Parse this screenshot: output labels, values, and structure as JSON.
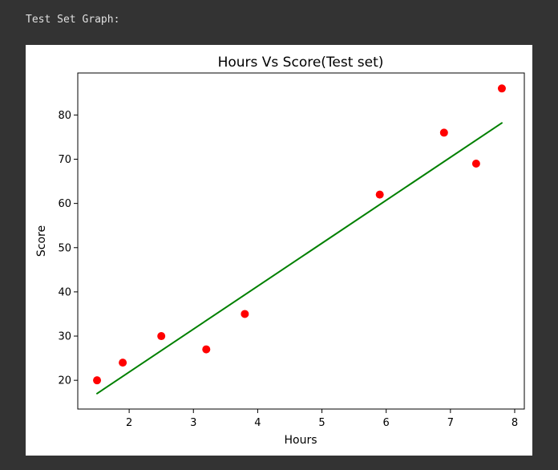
{
  "output": {
    "label": "Test Set Graph:"
  },
  "colors": {
    "background": "#333333",
    "figure": "#ffffff",
    "points": "#ff0000",
    "line": "#008000",
    "axis": "#000000"
  },
  "chart_data": {
    "type": "scatter",
    "title": "Hours Vs Score(Test set)",
    "xlabel": "Hours",
    "ylabel": "Score",
    "xlim": [
      1.2,
      8.15
    ],
    "ylim": [
      13.5,
      89.5
    ],
    "xticks": [
      2,
      3,
      4,
      5,
      6,
      7,
      8
    ],
    "yticks": [
      20,
      30,
      40,
      50,
      60,
      70,
      80
    ],
    "grid": false,
    "legend": "none",
    "series": [
      {
        "type": "scatter",
        "color": "#ff0000",
        "x": [
          1.5,
          1.9,
          2.5,
          3.2,
          3.8,
          5.9,
          6.9,
          7.4,
          7.8
        ],
        "y": [
          20,
          24,
          30,
          27,
          35,
          62,
          76,
          69,
          86
        ]
      },
      {
        "type": "line",
        "color": "#008000",
        "x": [
          1.5,
          7.8
        ],
        "y": [
          17,
          78.2
        ]
      }
    ]
  }
}
